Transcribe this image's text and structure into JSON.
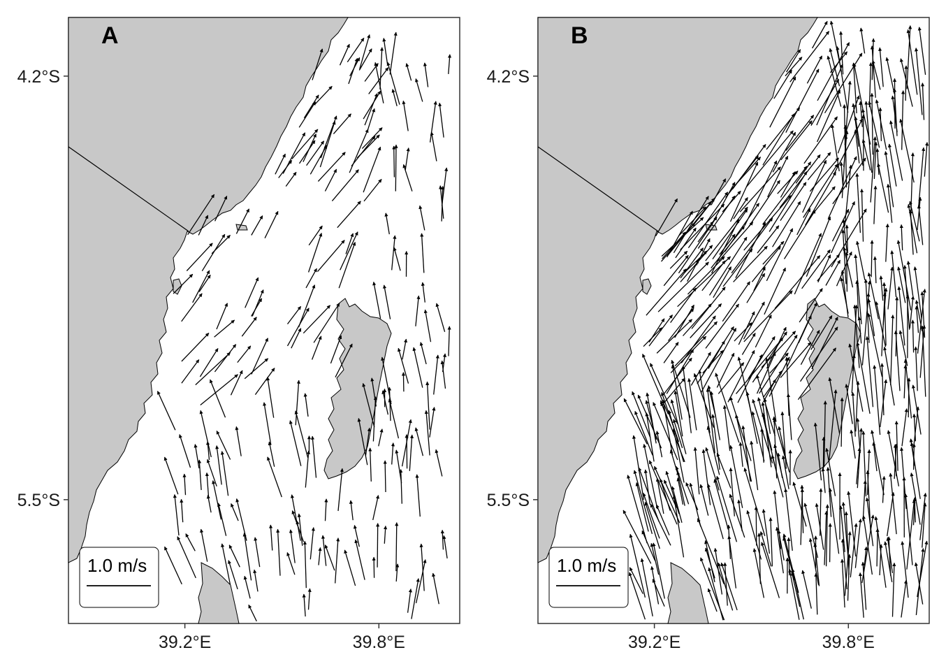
{
  "colors": {
    "land": "#c8c8c8",
    "water": "#ffffff",
    "arrow": "#000000",
    "frame": "#333333",
    "text": "#1a1a1a"
  },
  "axes": {
    "y_ticks": [
      {
        "value": -4.2,
        "label": "4.2°S"
      },
      {
        "value": -5.5,
        "label": "5.5°S"
      }
    ],
    "x_ticks": [
      {
        "value": 39.2,
        "label": "39.2°E"
      },
      {
        "value": 39.8,
        "label": "39.8°E"
      }
    ],
    "lon_range": [
      38.84,
      40.05
    ],
    "lat_range": [
      -5.88,
      -4.02
    ]
  },
  "panels": [
    {
      "id": "A",
      "letter": "A",
      "scale_label": "1.0 m/s"
    },
    {
      "id": "B",
      "letter": "B",
      "scale_label": "1.0 m/s"
    }
  ]
}
